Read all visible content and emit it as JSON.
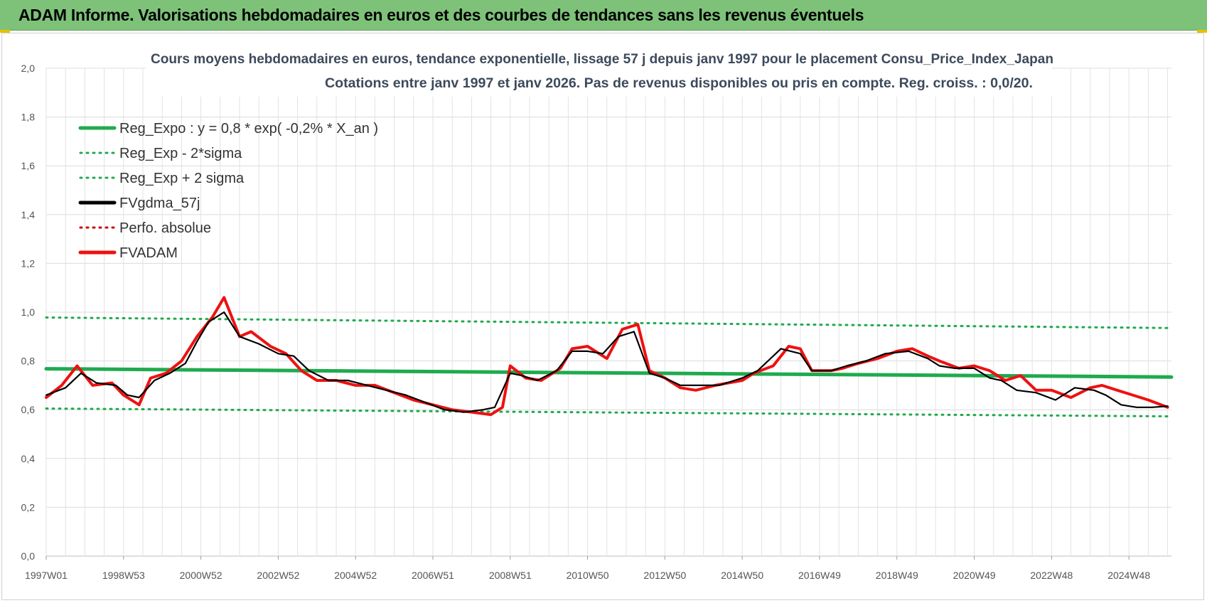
{
  "header": {
    "title": "ADAM Informe. Valorisations hebdomadaires en euros et des courbes de tendances sans les revenus éventuels"
  },
  "chart_data": {
    "type": "line",
    "title": "Cours moyens hebdomadaires en euros, tendance exponentielle, lissage 57 j depuis janv 1997 pour le placement Consu_Price_Index_Japan",
    "subtitle": "Cotations entre janv 1997 et janv 2026. Pas de revenus disponibles ou pris en compte. Reg. croiss. : 0,0/20.",
    "xlabel": "",
    "ylabel": "",
    "ylim": [
      0,
      2
    ],
    "yticks": [
      "0,0",
      "0,2",
      "0,4",
      "0,6",
      "0,8",
      "1,0",
      "1,2",
      "1,4",
      "1,6",
      "1,8",
      "2,0"
    ],
    "xlim": [
      1997.0,
      2026.1
    ],
    "xticks": [
      {
        "label": "1997W01",
        "x": 1997.0
      },
      {
        "label": "1998W53",
        "x": 1999.0
      },
      {
        "label": "2000W52",
        "x": 2001.0
      },
      {
        "label": "2002W52",
        "x": 2003.0
      },
      {
        "label": "2004W52",
        "x": 2005.0
      },
      {
        "label": "2006W51",
        "x": 2007.0
      },
      {
        "label": "2008W51",
        "x": 2009.0
      },
      {
        "label": "2010W50",
        "x": 2011.0
      },
      {
        "label": "2012W50",
        "x": 2013.0
      },
      {
        "label": "2014W50",
        "x": 2015.0
      },
      {
        "label": "2016W49",
        "x": 2017.0
      },
      {
        "label": "2018W49",
        "x": 2019.0
      },
      {
        "label": "2020W49",
        "x": 2021.0
      },
      {
        "label": "2022W48",
        "x": 2023.0
      },
      {
        "label": "2024W48",
        "x": 2025.0
      }
    ],
    "grid": true,
    "legend": "top-left",
    "series": [
      {
        "name": "Reg_Expo : y = 0,8 * exp( -0,2% *  X_an )",
        "color": "#1faa4f",
        "style": "solid",
        "x": [
          1997.0,
          2026.1
        ],
        "values": [
          0.768,
          0.734
        ]
      },
      {
        "name": "Reg_Exp - 2*sigma",
        "color": "#1faa4f",
        "style": "dotted",
        "x": [
          1997.0,
          2026.1
        ],
        "values": [
          0.605,
          0.573
        ]
      },
      {
        "name": "Reg_Exp + 2 sigma",
        "color": "#1faa4f",
        "style": "dotted",
        "x": [
          1997.0,
          2026.1
        ],
        "values": [
          0.978,
          0.935
        ]
      },
      {
        "name": "FVgdma_57j",
        "color": "#000000",
        "style": "solid",
        "x": [
          1997.0,
          1997.5,
          1997.9,
          1998.3,
          1998.8,
          1999.1,
          1999.4,
          1999.8,
          2000.2,
          2000.6,
          2000.9,
          2001.2,
          2001.6,
          2002.0,
          2002.5,
          2003.0,
          2003.4,
          2003.8,
          2004.3,
          2004.8,
          2005.3,
          2005.8,
          2006.3,
          2006.8,
          2007.3,
          2007.8,
          2008.3,
          2008.6,
          2009.0,
          2009.3,
          2009.7,
          2010.2,
          2010.6,
          2011.0,
          2011.4,
          2011.8,
          2012.2,
          2012.6,
          2013.0,
          2013.4,
          2013.8,
          2014.4,
          2015.0,
          2015.4,
          2016.0,
          2016.5,
          2016.8,
          2017.3,
          2017.7,
          2018.2,
          2018.7,
          2019.3,
          2019.8,
          2020.1,
          2020.5,
          2021.0,
          2021.4,
          2021.7,
          2022.1,
          2022.6,
          2023.1,
          2023.6,
          2024.1,
          2024.4,
          2024.8,
          2025.2,
          2025.6,
          2026.0
        ],
        "values": [
          0.66,
          0.69,
          0.75,
          0.71,
          0.7,
          0.66,
          0.65,
          0.72,
          0.75,
          0.79,
          0.88,
          0.96,
          1.0,
          0.9,
          0.87,
          0.83,
          0.82,
          0.76,
          0.72,
          0.72,
          0.7,
          0.68,
          0.66,
          0.63,
          0.6,
          0.59,
          0.6,
          0.61,
          0.75,
          0.74,
          0.72,
          0.76,
          0.84,
          0.84,
          0.83,
          0.9,
          0.92,
          0.75,
          0.73,
          0.7,
          0.7,
          0.7,
          0.73,
          0.76,
          0.85,
          0.83,
          0.76,
          0.76,
          0.78,
          0.8,
          0.83,
          0.84,
          0.81,
          0.78,
          0.77,
          0.77,
          0.73,
          0.72,
          0.68,
          0.67,
          0.64,
          0.69,
          0.68,
          0.66,
          0.62,
          0.61,
          0.61,
          0.615
        ]
      },
      {
        "name": "Perfo. absolue",
        "color": "#cc0000",
        "style": "dotted",
        "x": [
          1997.0,
          1997.4,
          1997.8,
          1998.2,
          1998.7,
          1999.0,
          1999.4,
          1999.7,
          2000.1,
          2000.5,
          2000.9,
          2001.3,
          2001.6,
          2002.0,
          2002.3,
          2002.8,
          2003.2,
          2003.6,
          2004.0,
          2004.5,
          2005.0,
          2005.5,
          2006.0,
          2006.5,
          2007.0,
          2007.5,
          2008.0,
          2008.5,
          2008.8,
          2009.0,
          2009.4,
          2009.8,
          2010.3,
          2010.6,
          2011.0,
          2011.5,
          2011.9,
          2012.3,
          2012.6,
          2013.0,
          2013.4,
          2013.8,
          2014.3,
          2015.0,
          2015.3,
          2015.8,
          2016.2,
          2016.5,
          2016.8,
          2017.3,
          2017.6,
          2018.0,
          2018.5,
          2019.0,
          2019.4,
          2019.8,
          2020.1,
          2020.6,
          2021.0,
          2021.4,
          2021.8,
          2022.2,
          2022.6,
          2023.0,
          2023.5,
          2024.0,
          2024.3,
          2024.7,
          2025.1,
          2025.5,
          2026.0
        ],
        "values": [
          0.65,
          0.7,
          0.78,
          0.7,
          0.71,
          0.66,
          0.62,
          0.73,
          0.75,
          0.8,
          0.9,
          0.98,
          1.06,
          0.9,
          0.92,
          0.86,
          0.83,
          0.76,
          0.72,
          0.72,
          0.7,
          0.7,
          0.67,
          0.64,
          0.62,
          0.6,
          0.59,
          0.58,
          0.61,
          0.78,
          0.73,
          0.72,
          0.77,
          0.85,
          0.86,
          0.81,
          0.93,
          0.95,
          0.76,
          0.73,
          0.69,
          0.68,
          0.7,
          0.72,
          0.75,
          0.78,
          0.86,
          0.85,
          0.76,
          0.76,
          0.77,
          0.79,
          0.81,
          0.84,
          0.85,
          0.82,
          0.8,
          0.77,
          0.78,
          0.76,
          0.72,
          0.74,
          0.68,
          0.68,
          0.65,
          0.69,
          0.7,
          0.68,
          0.66,
          0.64,
          0.61
        ]
      },
      {
        "name": "FVADAM",
        "color": "#ee1111",
        "style": "solid",
        "x": [
          1997.0,
          1997.4,
          1997.8,
          1998.2,
          1998.7,
          1999.0,
          1999.4,
          1999.7,
          2000.1,
          2000.5,
          2000.9,
          2001.3,
          2001.6,
          2002.0,
          2002.3,
          2002.8,
          2003.2,
          2003.6,
          2004.0,
          2004.5,
          2005.0,
          2005.5,
          2006.0,
          2006.5,
          2007.0,
          2007.5,
          2008.0,
          2008.5,
          2008.8,
          2009.0,
          2009.4,
          2009.8,
          2010.3,
          2010.6,
          2011.0,
          2011.5,
          2011.9,
          2012.3,
          2012.6,
          2013.0,
          2013.4,
          2013.8,
          2014.3,
          2015.0,
          2015.3,
          2015.8,
          2016.2,
          2016.5,
          2016.8,
          2017.3,
          2017.6,
          2018.0,
          2018.5,
          2019.0,
          2019.4,
          2019.8,
          2020.1,
          2020.6,
          2021.0,
          2021.4,
          2021.8,
          2022.2,
          2022.6,
          2023.0,
          2023.5,
          2024.0,
          2024.3,
          2024.7,
          2025.1,
          2025.5,
          2026.0
        ],
        "values": [
          0.65,
          0.7,
          0.78,
          0.7,
          0.71,
          0.66,
          0.62,
          0.73,
          0.75,
          0.8,
          0.9,
          0.98,
          1.06,
          0.9,
          0.92,
          0.86,
          0.83,
          0.76,
          0.72,
          0.72,
          0.7,
          0.7,
          0.67,
          0.64,
          0.62,
          0.6,
          0.59,
          0.58,
          0.61,
          0.78,
          0.73,
          0.72,
          0.77,
          0.85,
          0.86,
          0.81,
          0.93,
          0.95,
          0.76,
          0.73,
          0.69,
          0.68,
          0.7,
          0.72,
          0.75,
          0.78,
          0.86,
          0.85,
          0.76,
          0.76,
          0.77,
          0.79,
          0.81,
          0.84,
          0.85,
          0.82,
          0.8,
          0.77,
          0.78,
          0.76,
          0.72,
          0.74,
          0.68,
          0.68,
          0.65,
          0.69,
          0.7,
          0.68,
          0.66,
          0.64,
          0.61
        ]
      }
    ]
  }
}
